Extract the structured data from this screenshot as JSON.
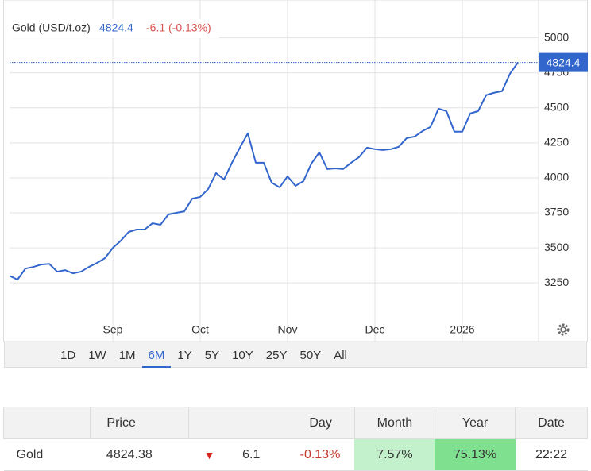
{
  "chart_data": {
    "type": "line",
    "title": "Gold (USD/t.oz)",
    "change_label": "-6.1 (-0.13%)",
    "categories": [
      null,
      null,
      null,
      null,
      null,
      null,
      null,
      null,
      null,
      null,
      null,
      null,
      null,
      "Sep",
      null,
      null,
      null,
      null,
      null,
      null,
      null,
      null,
      null,
      null,
      "Oct",
      null,
      null,
      null,
      null,
      null,
      null,
      null,
      null,
      null,
      null,
      "Nov",
      null,
      null,
      null,
      null,
      null,
      null,
      null,
      null,
      null,
      null,
      "Dec",
      null,
      null,
      null,
      null,
      null,
      null,
      null,
      null,
      null,
      null,
      "2026",
      null,
      null,
      null,
      null,
      null,
      null,
      null
    ],
    "values": [
      3301,
      3273,
      3352,
      3364,
      3381,
      3386,
      3330,
      3341,
      3318,
      3330,
      3364,
      3392,
      3426,
      3500,
      3551,
      3614,
      3631,
      3631,
      3676,
      3665,
      3739,
      3750,
      3761,
      3852,
      3864,
      3920,
      4034,
      3989,
      4108,
      4216,
      4318,
      4108,
      4108,
      3966,
      3932,
      4011,
      3943,
      3977,
      4102,
      4182,
      4063,
      4068,
      4063,
      4108,
      4148,
      4216,
      4205,
      4199,
      4205,
      4222,
      4284,
      4295,
      4335,
      4364,
      4494,
      4477,
      4330,
      4330,
      4460,
      4477,
      4591,
      4608,
      4619,
      4744,
      4824.4
    ],
    "color": "#3366cc",
    "ylim": [
      2990,
      5225
    ],
    "yticks": [
      3250,
      3500,
      3750,
      4000,
      4250,
      4500,
      4750,
      5000
    ],
    "grid": true,
    "ranges": [
      "1D",
      "1W",
      "1M",
      "6M",
      "1Y",
      "5Y",
      "10Y",
      "25Y",
      "50Y",
      "All"
    ],
    "selected_range": 3
  },
  "table": {
    "columns": [
      "Price",
      "Day",
      "Month",
      "Year",
      "Date"
    ],
    "rows": [
      [
        "Gold",
        "4824.38",
        "6.1",
        "-0.13%",
        "7.57%",
        "75.13%",
        "22:22"
      ]
    ]
  }
}
